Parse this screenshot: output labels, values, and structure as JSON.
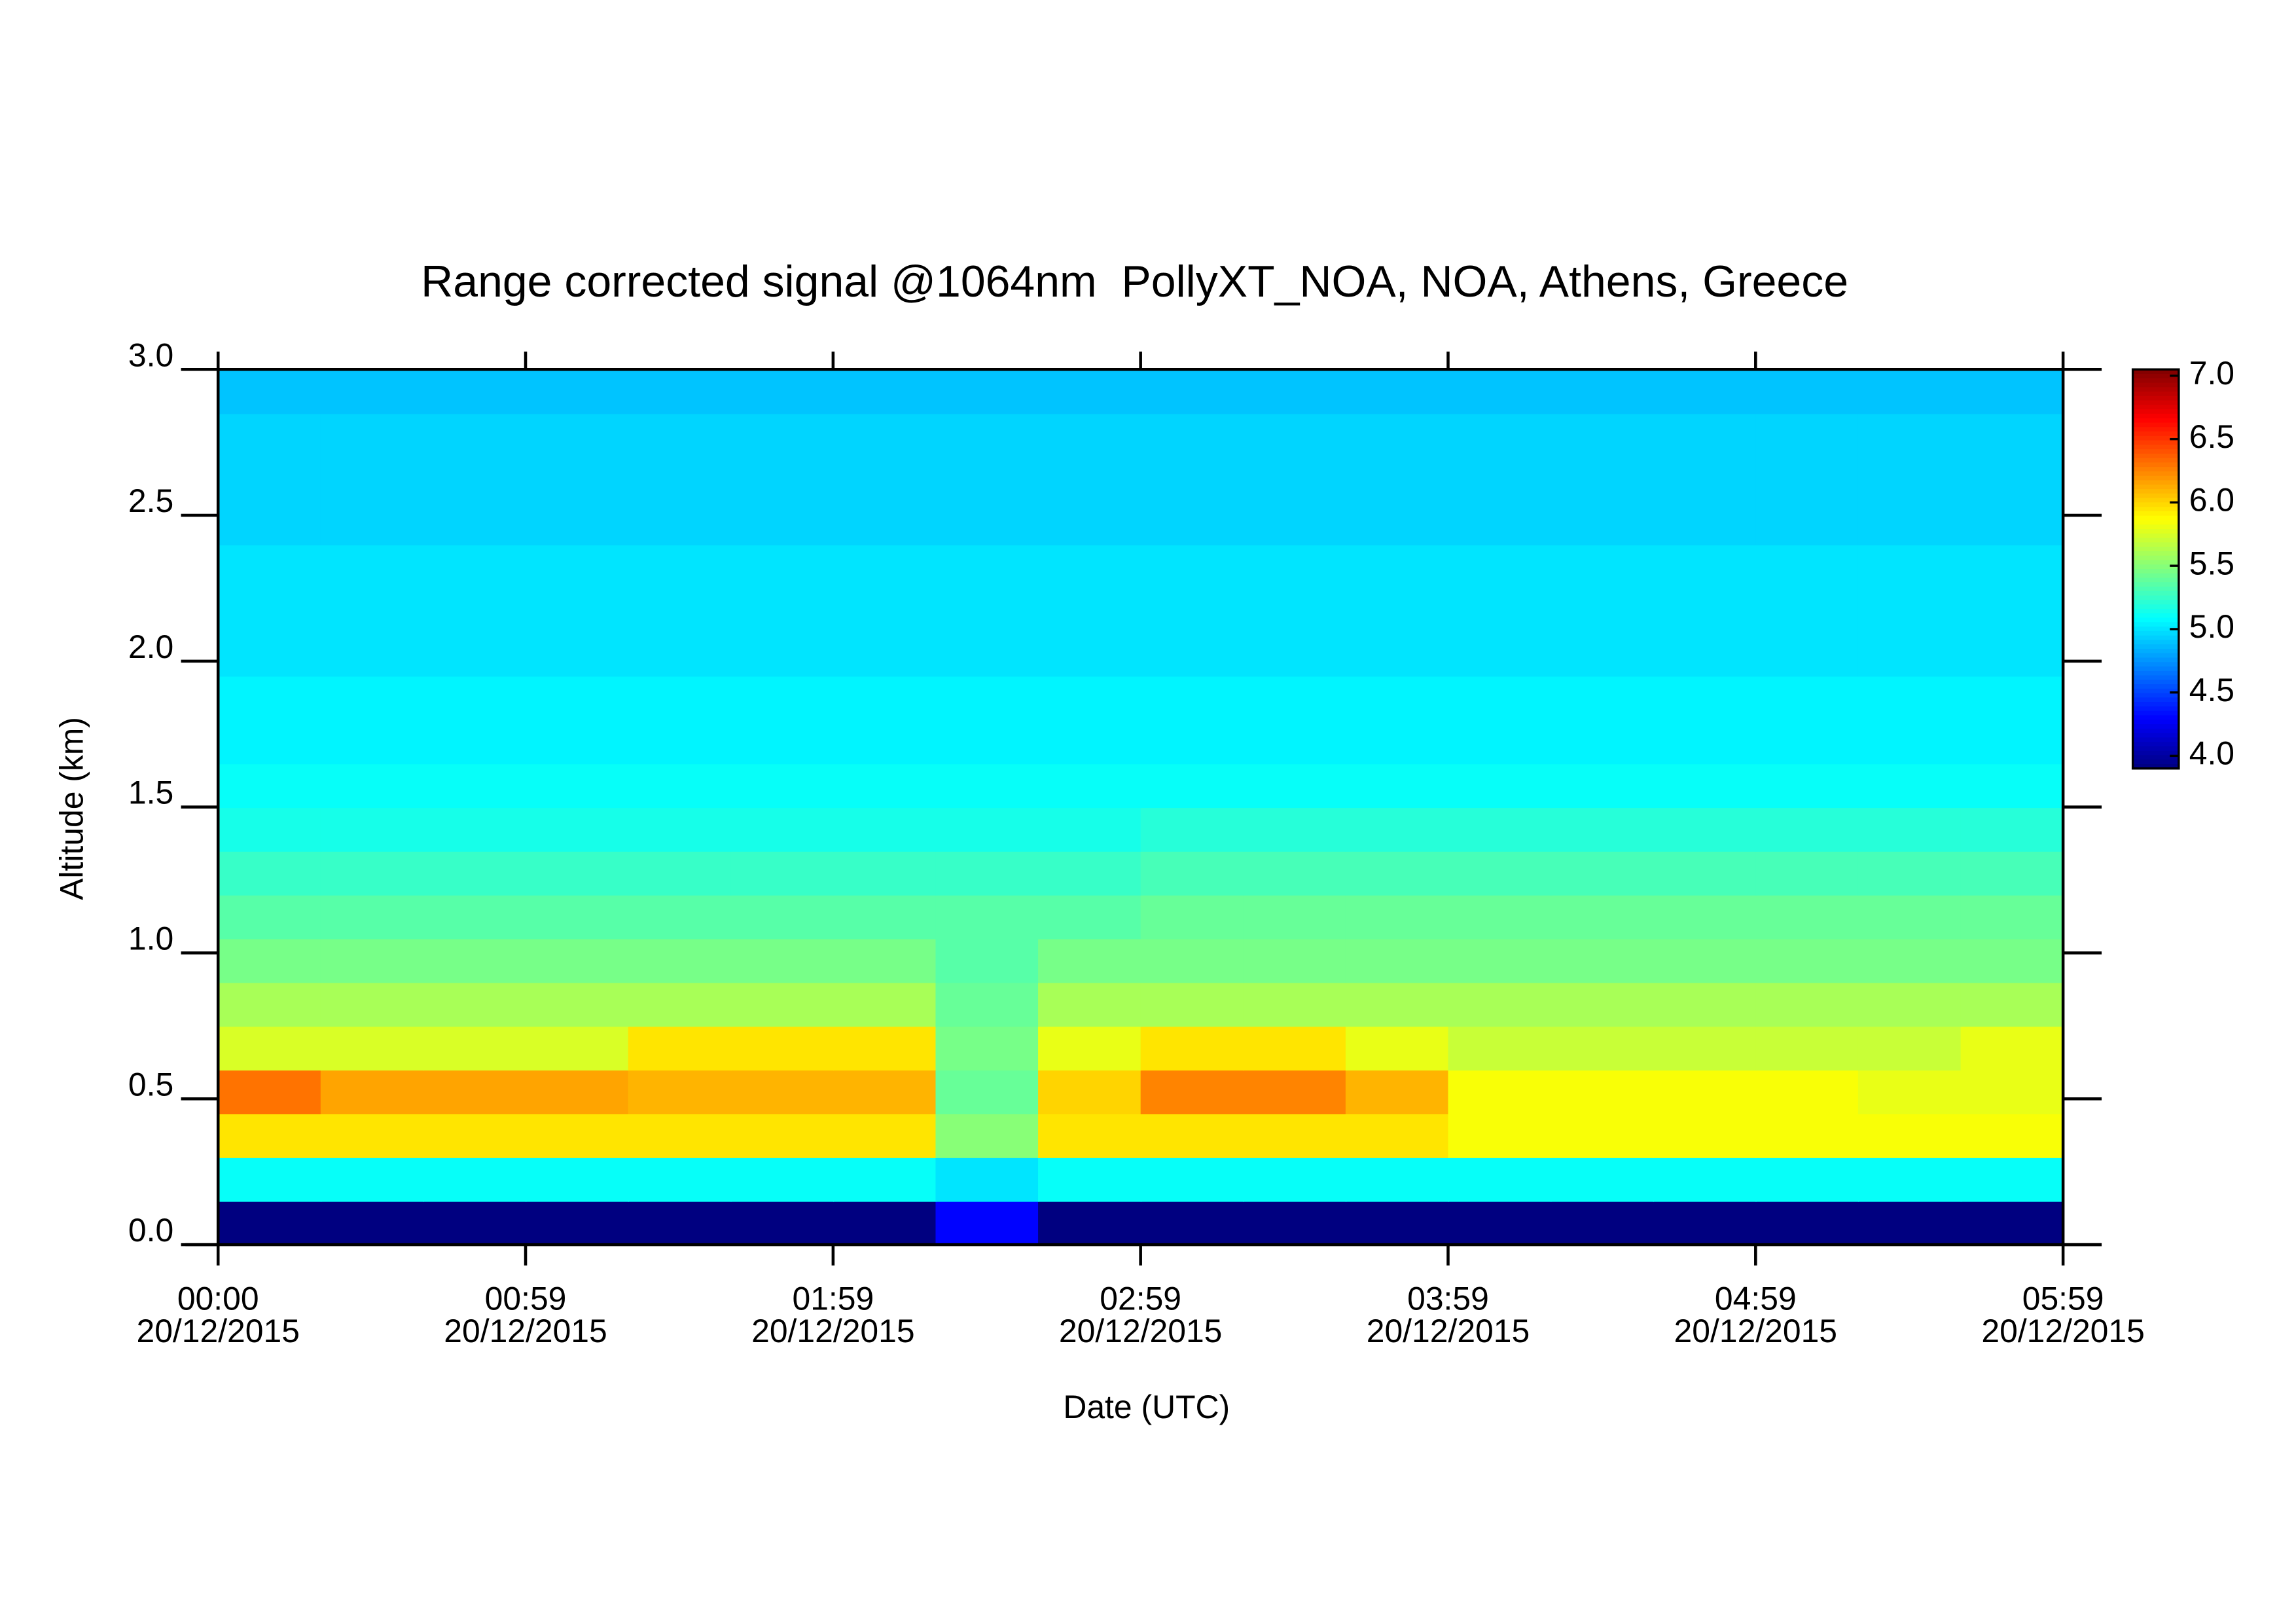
{
  "chart_data": {
    "type": "heatmap",
    "title": "Range corrected signal @1064nm  PollyXT_NOA, NOA, Athens, Greece",
    "x_label": "Date (UTC)",
    "y_label": "Altitude (km)",
    "colormap": "jet",
    "xlim": [
      0,
      360
    ],
    "xticks": [
      {
        "value": 0,
        "label": "00:00 20/12/2015"
      },
      {
        "value": 60,
        "label": "00:59 20/12/2015"
      },
      {
        "value": 120,
        "label": "01:59 20/12/2015"
      },
      {
        "value": 180,
        "label": "02:59 20/12/2015"
      },
      {
        "value": 240,
        "label": "03:59 20/12/2015"
      },
      {
        "value": 300,
        "label": "04:59 20/12/2015"
      },
      {
        "value": 360,
        "label": "05:59 20/12/2015"
      }
    ],
    "ylim": [
      0,
      3.0
    ],
    "yticks": [
      {
        "value": 0,
        "label": "0.0"
      },
      0.5,
      {
        "value": 1,
        "label": "1.0"
      },
      1.5,
      {
        "value": 2,
        "label": "2.0"
      },
      2.5,
      {
        "value": 3,
        "label": "3.0"
      }
    ],
    "zlim": [
      3.9,
      7.05
    ],
    "zticks": [
      {
        "value": 4,
        "label": "4.0"
      },
      4.5,
      {
        "value": 5,
        "label": "5.0"
      },
      5.5,
      {
        "value": 6,
        "label": "6.0"
      },
      6.5,
      {
        "value": 7,
        "label": "7.0"
      }
    ],
    "x": [
      10,
      30,
      50,
      70,
      90,
      110,
      130,
      150,
      170,
      190,
      210,
      230,
      250,
      270,
      290,
      310,
      330,
      350
    ],
    "y": [
      0.075,
      0.225,
      0.375,
      0.525,
      0.675,
      0.825,
      0.975,
      1.125,
      1.275,
      1.425,
      1.575,
      1.725,
      1.875,
      2.025,
      2.175,
      2.325,
      2.475,
      2.625,
      2.775,
      2.925
    ],
    "z": [
      [
        3.9,
        3.9,
        3.9,
        3.9,
        3.9,
        3.9,
        3.9,
        4.3,
        3.9,
        3.9,
        3.9,
        3.9,
        3.9,
        3.9,
        3.9,
        3.9,
        3.9,
        3.9
      ],
      [
        5.1,
        5.1,
        5.1,
        5.1,
        5.1,
        5.1,
        5.1,
        5.0,
        5.1,
        5.1,
        5.1,
        5.1,
        5.1,
        5.1,
        5.1,
        5.1,
        5.1,
        5.1
      ],
      [
        5.95,
        5.95,
        5.95,
        5.95,
        5.95,
        5.95,
        5.95,
        5.5,
        5.95,
        5.95,
        5.95,
        5.95,
        5.85,
        5.85,
        5.85,
        5.85,
        5.85,
        5.85
      ],
      [
        6.3,
        6.15,
        6.15,
        6.15,
        6.1,
        6.1,
        6.1,
        5.4,
        6.0,
        6.25,
        6.25,
        6.1,
        5.85,
        5.85,
        5.85,
        5.85,
        5.8,
        5.8
      ],
      [
        5.75,
        5.75,
        5.75,
        5.75,
        5.95,
        5.95,
        5.95,
        5.45,
        5.8,
        5.95,
        5.95,
        5.8,
        5.7,
        5.7,
        5.7,
        5.7,
        5.7,
        5.8
      ],
      [
        5.6,
        5.6,
        5.6,
        5.6,
        5.6,
        5.6,
        5.6,
        5.4,
        5.6,
        5.6,
        5.6,
        5.6,
        5.6,
        5.6,
        5.6,
        5.6,
        5.6,
        5.6
      ],
      [
        5.45,
        5.45,
        5.45,
        5.45,
        5.45,
        5.45,
        5.45,
        5.35,
        5.45,
        5.45,
        5.45,
        5.45,
        5.45,
        5.45,
        5.45,
        5.45,
        5.45,
        5.45
      ],
      [
        5.35,
        5.35,
        5.35,
        5.35,
        5.35,
        5.35,
        5.35,
        5.35,
        5.35,
        5.4,
        5.4,
        5.4,
        5.4,
        5.4,
        5.4,
        5.4,
        5.4,
        5.4
      ],
      [
        5.25,
        5.25,
        5.25,
        5.25,
        5.25,
        5.25,
        5.25,
        5.25,
        5.25,
        5.3,
        5.3,
        5.3,
        5.3,
        5.3,
        5.3,
        5.3,
        5.3,
        5.3
      ],
      [
        5.15,
        5.15,
        5.15,
        5.15,
        5.15,
        5.15,
        5.15,
        5.15,
        5.15,
        5.2,
        5.2,
        5.2,
        5.2,
        5.2,
        5.2,
        5.2,
        5.2,
        5.2
      ],
      [
        5.1,
        5.1,
        5.1,
        5.1,
        5.1,
        5.1,
        5.1,
        5.1,
        5.1,
        5.1,
        5.1,
        5.1,
        5.1,
        5.1,
        5.1,
        5.1,
        5.1,
        5.1
      ],
      [
        5.05,
        5.05,
        5.05,
        5.05,
        5.05,
        5.05,
        5.05,
        5.05,
        5.05,
        5.05,
        5.05,
        5.05,
        5.05,
        5.05,
        5.05,
        5.05,
        5.05,
        5.05
      ],
      [
        5.05,
        5.05,
        5.05,
        5.05,
        5.05,
        5.05,
        5.05,
        5.05,
        5.05,
        5.05,
        5.05,
        5.05,
        5.05,
        5.05,
        5.05,
        5.05,
        5.05,
        5.05
      ],
      [
        5.0,
        5.0,
        5.0,
        5.0,
        5.0,
        5.0,
        5.0,
        5.0,
        5.0,
        5.0,
        5.0,
        5.0,
        5.0,
        5.0,
        5.0,
        5.0,
        5.0,
        5.0
      ],
      [
        5.0,
        5.0,
        5.0,
        5.0,
        5.0,
        5.0,
        5.0,
        5.0,
        5.0,
        5.0,
        5.0,
        5.0,
        5.0,
        5.0,
        5.0,
        5.0,
        5.0,
        5.0
      ],
      [
        5.0,
        5.0,
        5.0,
        5.0,
        5.0,
        5.0,
        5.0,
        5.0,
        5.0,
        5.0,
        5.0,
        5.0,
        5.0,
        5.0,
        5.0,
        5.0,
        5.0,
        5.0
      ],
      [
        4.95,
        4.95,
        4.95,
        4.95,
        4.95,
        4.95,
        4.95,
        4.95,
        4.95,
        4.95,
        4.95,
        4.95,
        4.95,
        4.95,
        4.95,
        4.95,
        4.95,
        4.95
      ],
      [
        4.95,
        4.95,
        4.95,
        4.95,
        4.95,
        4.95,
        4.95,
        4.95,
        4.95,
        4.95,
        4.95,
        4.95,
        4.95,
        4.95,
        4.95,
        4.95,
        4.95,
        4.95
      ],
      [
        4.95,
        4.95,
        4.95,
        4.95,
        4.95,
        4.95,
        4.95,
        4.95,
        4.95,
        4.95,
        4.95,
        4.95,
        4.95,
        4.95,
        4.95,
        4.95,
        4.95,
        4.95
      ],
      [
        4.9,
        4.9,
        4.9,
        4.9,
        4.9,
        4.9,
        4.9,
        4.9,
        4.9,
        4.9,
        4.9,
        4.9,
        4.9,
        4.9,
        4.9,
        4.9,
        4.9,
        4.9
      ]
    ]
  }
}
